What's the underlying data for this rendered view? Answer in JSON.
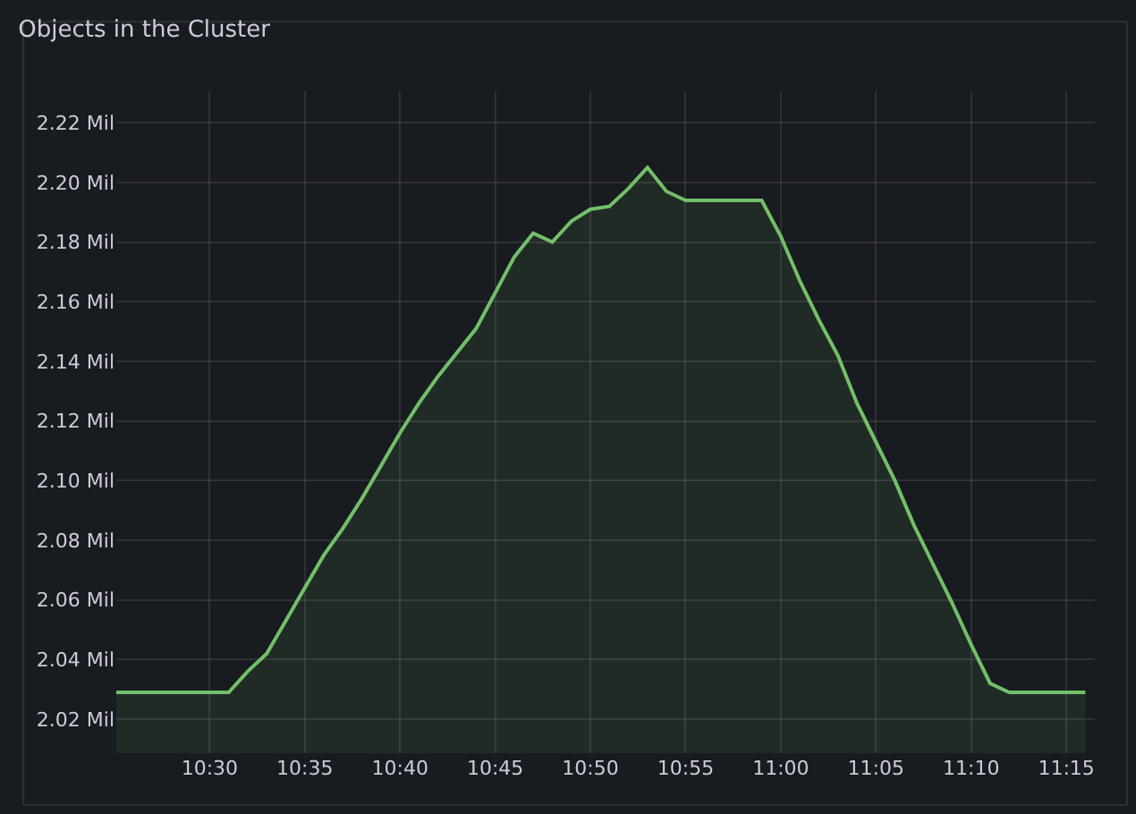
{
  "chart_data": {
    "type": "area",
    "title": "Objects in the Cluster",
    "x": [
      10.4183,
      10.5167,
      10.5333,
      10.55,
      10.5667,
      10.5833,
      10.6,
      10.6167,
      10.6333,
      10.65,
      10.6667,
      10.6833,
      10.7,
      10.7167,
      10.7333,
      10.75,
      10.7667,
      10.7833,
      10.8,
      10.8167,
      10.8333,
      10.85,
      10.8667,
      10.8833,
      10.9,
      10.9167,
      10.9833,
      11.0,
      11.0167,
      11.0333,
      11.05,
      11.0667,
      11.0833,
      11.1,
      11.1167,
      11.1333,
      11.15,
      11.1667,
      11.1833,
      11.2,
      11.2667
    ],
    "series": [
      {
        "color": "#73bf69",
        "values": [
          2.029,
          2.029,
          2.036,
          2.042,
          2.053,
          2.064,
          2.075,
          2.084,
          2.094,
          2.105,
          2.116,
          2.126,
          2.135,
          2.143,
          2.151,
          2.163,
          2.175,
          2.183,
          2.18,
          2.187,
          2.191,
          2.192,
          2.198,
          2.205,
          2.197,
          2.194,
          2.194,
          2.182,
          2.167,
          2.154,
          2.142,
          2.126,
          2.113,
          2.1,
          2.085,
          2.072,
          2.059,
          2.045,
          2.032,
          2.029,
          2.029
        ]
      }
    ],
    "xlim": [
      10.4183,
      11.275
    ],
    "xticks": [
      {
        "value": 10.5,
        "label": "10:30"
      },
      {
        "value": 10.5833,
        "label": "10:35"
      },
      {
        "value": 10.6667,
        "label": "10:40"
      },
      {
        "value": 10.75,
        "label": "10:45"
      },
      {
        "value": 10.8333,
        "label": "10:50"
      },
      {
        "value": 10.9167,
        "label": "10:55"
      },
      {
        "value": 11.0,
        "label": "11:00"
      },
      {
        "value": 11.0833,
        "label": "11:05"
      },
      {
        "value": 11.1667,
        "label": "11:10"
      },
      {
        "value": 11.25,
        "label": "11:15"
      }
    ],
    "ylim": [
      2.0086,
      2.2306
    ],
    "yticks": [
      {
        "value": 2.02,
        "label": "2.02 Mil"
      },
      {
        "value": 2.04,
        "label": "2.04 Mil"
      },
      {
        "value": 2.06,
        "label": "2.06 Mil"
      },
      {
        "value": 2.08,
        "label": "2.08 Mil"
      },
      {
        "value": 2.1,
        "label": "2.10 Mil"
      },
      {
        "value": 2.12,
        "label": "2.12 Mil"
      },
      {
        "value": 2.14,
        "label": "2.14 Mil"
      },
      {
        "value": 2.16,
        "label": "2.16 Mil"
      },
      {
        "value": 2.18,
        "label": "2.18 Mil"
      },
      {
        "value": 2.2,
        "label": "2.20 Mil"
      },
      {
        "value": 2.22,
        "label": "2.22 Mil"
      }
    ],
    "grid": true
  }
}
